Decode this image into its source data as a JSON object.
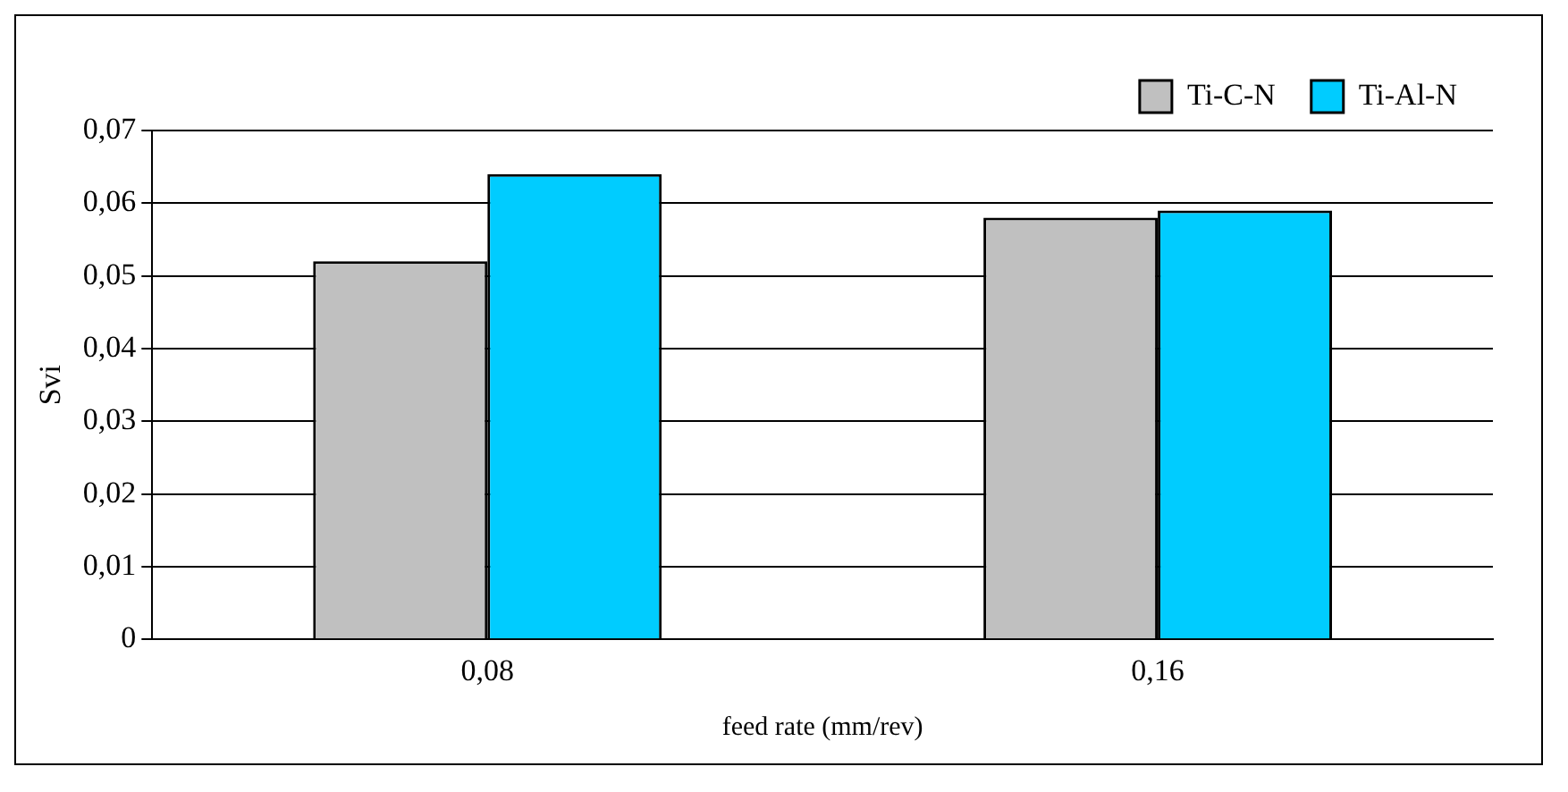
{
  "chart_data": {
    "type": "bar",
    "xlabel": "feed rate (mm/rev)",
    "ylabel": "Svi",
    "categories": [
      "0,08",
      "0,16"
    ],
    "series": [
      {
        "name": "Ti-C-N",
        "color": "#c0c0c0",
        "values": [
          0.052,
          0.058
        ]
      },
      {
        "name": "Ti-Al-N",
        "color": "#00ccff",
        "values": [
          0.064,
          0.059
        ]
      }
    ],
    "ylim": [
      0,
      0.07
    ],
    "yticks": [
      0,
      {
        "value": 0.01,
        "label": "0,01"
      },
      {
        "value": 0.02,
        "label": "0,02"
      },
      {
        "value": 0.03,
        "label": "0,03"
      },
      {
        "value": 0.04,
        "label": "0,04"
      },
      {
        "value": 0.05,
        "label": "0,05"
      },
      {
        "value": 0.06,
        "label": "0,06"
      },
      {
        "value": 0.07,
        "label": "0,07"
      }
    ],
    "grid": "y",
    "legend": "top right"
  }
}
